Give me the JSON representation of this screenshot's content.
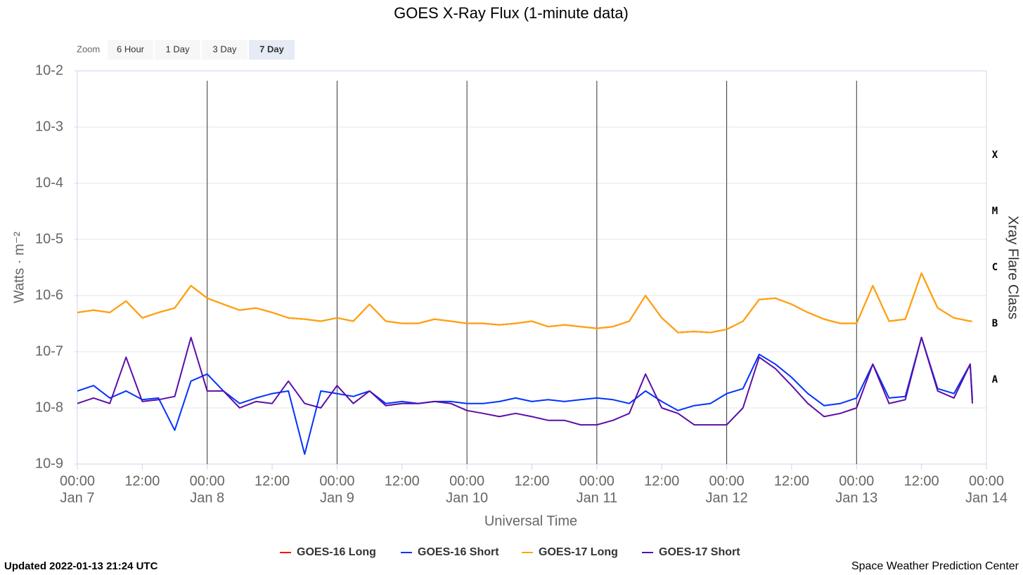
{
  "chart_data": {
    "type": "line",
    "title": "GOES X-Ray Flux (1-minute data)",
    "zoom_label": "Zoom",
    "zoom_buttons": [
      "6 Hour",
      "1 Day",
      "3 Day",
      "7 Day"
    ],
    "zoom_selected": 3,
    "xlabel": "Universal Time",
    "ylabel": "Watts · m⁻²",
    "y2label": "Xray Flare Class",
    "log_y": true,
    "grid": true,
    "legend": "bottom",
    "ylim": [
      1e-09,
      0.01
    ],
    "yticks": [
      {
        "value": 0.01,
        "label": "10-2"
      },
      {
        "value": 0.001,
        "label": "10-3"
      },
      {
        "value": 0.0001,
        "label": "10-4"
      },
      {
        "value": 1e-05,
        "label": "10-5"
      },
      {
        "value": 1e-06,
        "label": "10-6"
      },
      {
        "value": 1e-07,
        "label": "10-7"
      },
      {
        "value": 1e-08,
        "label": "10-8"
      },
      {
        "value": 1e-09,
        "label": "10-9"
      }
    ],
    "flare_classes": [
      {
        "label": "X",
        "value": 0.0001
      },
      {
        "label": "M",
        "value": 1e-05
      },
      {
        "label": "C",
        "value": 1e-06
      },
      {
        "label": "B",
        "value": 1e-07
      },
      {
        "label": "A",
        "value": 1e-08
      }
    ],
    "xlim": [
      "Jan 7 00:00",
      "Jan 14 00:00"
    ],
    "xticks": [
      {
        "value": "Jan 7 00:00",
        "label": [
          "00:00",
          "Jan 7"
        ]
      },
      {
        "value": "Jan 7 12:00",
        "label": [
          "12:00"
        ]
      },
      {
        "value": "Jan 8 00:00",
        "label": [
          "00:00",
          "Jan 8"
        ]
      },
      {
        "value": "Jan 8 12:00",
        "label": [
          "12:00"
        ]
      },
      {
        "value": "Jan 9 00:00",
        "label": [
          "00:00",
          "Jan 9"
        ]
      },
      {
        "value": "Jan 9 12:00",
        "label": [
          "12:00"
        ]
      },
      {
        "value": "Jan 10 00:00",
        "label": [
          "00:00",
          "Jan 10"
        ]
      },
      {
        "value": "Jan 10 12:00",
        "label": [
          "12:00"
        ]
      },
      {
        "value": "Jan 11 00:00",
        "label": [
          "00:00",
          "Jan 11"
        ]
      },
      {
        "value": "Jan 11 12:00",
        "label": [
          "12:00"
        ]
      },
      {
        "value": "Jan 12 00:00",
        "label": [
          "00:00",
          "Jan 12"
        ]
      },
      {
        "value": "Jan 12 12:00",
        "label": [
          "12:00"
        ]
      },
      {
        "value": "Jan 13 00:00",
        "label": [
          "00:00",
          "Jan 13"
        ]
      },
      {
        "value": "Jan 13 12:00",
        "label": [
          "12:00"
        ]
      },
      {
        "value": "Jan 14 00:00",
        "label": [
          "00:00",
          "Jan 14"
        ]
      }
    ],
    "x": [
      "Jan 7 00:00",
      "Jan 7 03:00",
      "Jan 7 06:00",
      "Jan 7 09:00",
      "Jan 7 12:00",
      "Jan 7 15:00",
      "Jan 7 18:00",
      "Jan 7 21:00",
      "Jan 8 00:00",
      "Jan 8 03:00",
      "Jan 8 06:00",
      "Jan 8 09:00",
      "Jan 8 12:00",
      "Jan 8 15:00",
      "Jan 8 18:00",
      "Jan 8 21:00",
      "Jan 9 00:00",
      "Jan 9 03:00",
      "Jan 9 06:00",
      "Jan 9 09:00",
      "Jan 9 12:00",
      "Jan 9 15:00",
      "Jan 9 18:00",
      "Jan 9 21:00",
      "Jan 10 00:00",
      "Jan 10 03:00",
      "Jan 10 06:00",
      "Jan 10 09:00",
      "Jan 10 12:00",
      "Jan 10 15:00",
      "Jan 10 18:00",
      "Jan 10 21:00",
      "Jan 11 00:00",
      "Jan 11 03:00",
      "Jan 11 06:00",
      "Jan 11 09:00",
      "Jan 11 12:00",
      "Jan 11 15:00",
      "Jan 11 18:00",
      "Jan 11 21:00",
      "Jan 12 00:00",
      "Jan 12 03:00",
      "Jan 12 06:00",
      "Jan 12 09:00",
      "Jan 12 12:00",
      "Jan 12 15:00",
      "Jan 12 18:00",
      "Jan 12 21:00",
      "Jan 13 00:00",
      "Jan 13 03:00",
      "Jan 13 06:00",
      "Jan 13 09:00",
      "Jan 13 12:00",
      "Jan 13 15:00",
      "Jan 13 18:00",
      "Jan 13 21:00",
      "Jan 13 21:24"
    ],
    "series": [
      {
        "name": "GOES-16 Long",
        "color": "#ff0000",
        "values": [
          5e-07,
          5.5e-07,
          5e-07,
          8e-07,
          4e-07,
          5e-07,
          6e-07,
          1.5e-06,
          9e-07,
          7e-07,
          5.5e-07,
          6e-07,
          5e-07,
          4e-07,
          3.8e-07,
          3.5e-07,
          4e-07,
          3.5e-07,
          7e-07,
          3.5e-07,
          3.2e-07,
          3.2e-07,
          3.8e-07,
          3.5e-07,
          3.2e-07,
          3.2e-07,
          3e-07,
          3.2e-07,
          3.5e-07,
          2.8e-07,
          3e-07,
          2.8e-07,
          2.6e-07,
          2.8e-07,
          3.5e-07,
          1e-06,
          4e-07,
          2.2e-07,
          2.3e-07,
          2.2e-07,
          2.5e-07,
          3.5e-07,
          8.5e-07,
          9e-07,
          7e-07,
          5e-07,
          3.8e-07,
          3.2e-07,
          3.2e-07,
          1.5e-06,
          3.5e-07,
          3.8e-07,
          2.5e-06,
          6e-07,
          4e-07,
          3.5e-07,
          3.5e-07
        ]
      },
      {
        "name": "GOES-16 Short",
        "color": "#0033ff",
        "values": [
          2e-08,
          2.5e-08,
          1.5e-08,
          2e-08,
          1.4e-08,
          1.5e-08,
          4e-09,
          3e-08,
          4e-08,
          2e-08,
          1.2e-08,
          1.5e-08,
          1.8e-08,
          2e-08,
          1.5e-09,
          2e-08,
          1.8e-08,
          1.6e-08,
          2e-08,
          1.2e-08,
          1.3e-08,
          1.2e-08,
          1.3e-08,
          1.3e-08,
          1.2e-08,
          1.2e-08,
          1.3e-08,
          1.5e-08,
          1.3e-08,
          1.4e-08,
          1.3e-08,
          1.4e-08,
          1.5e-08,
          1.4e-08,
          1.2e-08,
          2e-08,
          1.3e-08,
          9e-09,
          1.1e-08,
          1.2e-08,
          1.8e-08,
          2.2e-08,
          9e-08,
          6e-08,
          3.5e-08,
          1.8e-08,
          1.1e-08,
          1.2e-08,
          1.5e-08,
          6e-08,
          1.5e-08,
          1.6e-08,
          1.8e-07,
          2.2e-08,
          1.8e-08,
          6e-08,
          1.4e-08
        ]
      },
      {
        "name": "GOES-17 Long",
        "color": "#ffa500",
        "values": [
          5e-07,
          5.5e-07,
          5e-07,
          8e-07,
          4e-07,
          5e-07,
          6e-07,
          1.5e-06,
          9e-07,
          7e-07,
          5.5e-07,
          6e-07,
          5e-07,
          4e-07,
          3.8e-07,
          3.5e-07,
          4e-07,
          3.5e-07,
          7e-07,
          3.5e-07,
          3.2e-07,
          3.2e-07,
          3.8e-07,
          3.5e-07,
          3.2e-07,
          3.2e-07,
          3e-07,
          3.2e-07,
          3.5e-07,
          2.8e-07,
          3e-07,
          2.8e-07,
          2.6e-07,
          2.8e-07,
          3.5e-07,
          1e-06,
          4e-07,
          2.2e-07,
          2.3e-07,
          2.2e-07,
          2.5e-07,
          3.5e-07,
          8.5e-07,
          9e-07,
          7e-07,
          5e-07,
          3.8e-07,
          3.2e-07,
          3.2e-07,
          1.5e-06,
          3.5e-07,
          3.8e-07,
          2.5e-06,
          6e-07,
          4e-07,
          3.5e-07,
          3.5e-07
        ]
      },
      {
        "name": "GOES-17 Short",
        "color": "#5b0ea8",
        "values": [
          1.2e-08,
          1.5e-08,
          1.2e-08,
          8e-08,
          1.3e-08,
          1.4e-08,
          1.6e-08,
          1.8e-07,
          2e-08,
          2e-08,
          1e-08,
          1.3e-08,
          1.2e-08,
          3e-08,
          1.2e-08,
          1e-08,
          2.5e-08,
          1.2e-08,
          2e-08,
          1.1e-08,
          1.2e-08,
          1.2e-08,
          1.3e-08,
          1.2e-08,
          9e-09,
          8e-09,
          7e-09,
          8e-09,
          7e-09,
          6e-09,
          6e-09,
          5e-09,
          5e-09,
          6e-09,
          8e-09,
          4e-08,
          1e-08,
          8e-09,
          5e-09,
          5e-09,
          5e-09,
          1e-08,
          8e-08,
          5e-08,
          2.5e-08,
          1.2e-08,
          7e-09,
          8e-09,
          1e-08,
          6e-08,
          1.2e-08,
          1.4e-08,
          1.8e-07,
          2e-08,
          1.5e-08,
          6e-08,
          1.2e-08
        ]
      }
    ],
    "updated": "Updated 2022-01-13 21:24 UTC",
    "credit": "Space Weather Prediction Center"
  }
}
